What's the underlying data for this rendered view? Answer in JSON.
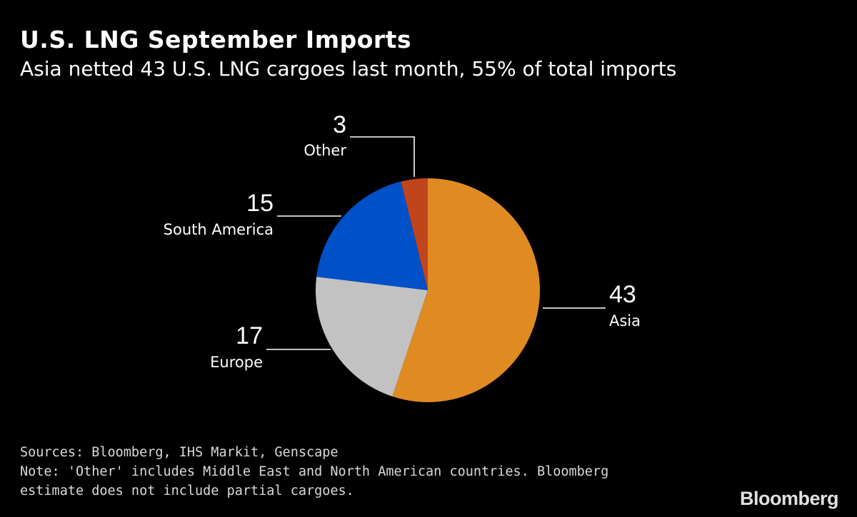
{
  "header": {
    "title": "U.S. LNG September Imports",
    "subtitle": "Asia netted 43 U.S. LNG cargoes last month, 55% of total imports"
  },
  "chart_data": {
    "type": "pie",
    "title": "U.S. LNG September Imports",
    "subtitle": "Asia netted 43 U.S. LNG cargoes last month, 55% of total imports",
    "unit": "cargoes",
    "slices": [
      {
        "label": "Asia",
        "value": 43,
        "value_label": "43",
        "color": "#e08a22"
      },
      {
        "label": "Europe",
        "value": 17,
        "value_label": "17",
        "color": "#c2c2c2"
      },
      {
        "label": "South America",
        "value": 15,
        "value_label": "15",
        "color": "#0050c8"
      },
      {
        "label": "Other",
        "value": 3,
        "value_label": "3",
        "color": "#c0441c"
      }
    ]
  },
  "footer": {
    "sources": "Sources: Bloomberg, IHS Markit, Genscape",
    "note_line1": "Note: 'Other' includes Middle East and North American countries. Bloomberg",
    "note_line2": "estimate does not include partial cargoes.",
    "brand": "Bloomberg"
  },
  "colors": {
    "background": "#000000",
    "text": "#ffffff",
    "leader_line": "#ffffff"
  }
}
